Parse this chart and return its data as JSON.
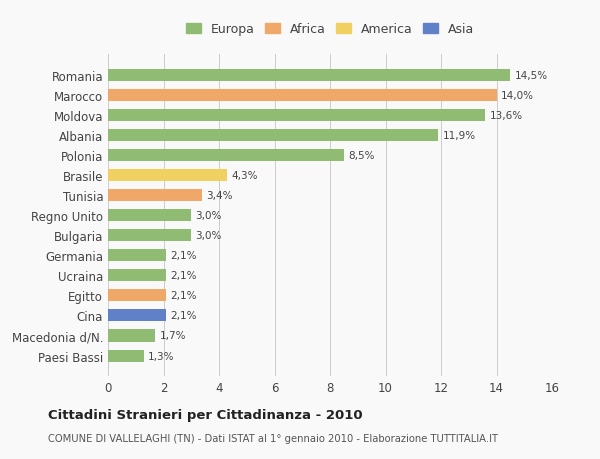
{
  "categories": [
    "Romania",
    "Marocco",
    "Moldova",
    "Albania",
    "Polonia",
    "Brasile",
    "Tunisia",
    "Regno Unito",
    "Bulgaria",
    "Germania",
    "Ucraina",
    "Egitto",
    "Cina",
    "Macedonia d/N.",
    "Paesi Bassi"
  ],
  "values": [
    14.5,
    14.0,
    13.6,
    11.9,
    8.5,
    4.3,
    3.4,
    3.0,
    3.0,
    2.1,
    2.1,
    2.1,
    2.1,
    1.7,
    1.3
  ],
  "labels": [
    "14,5%",
    "14,0%",
    "13,6%",
    "11,9%",
    "8,5%",
    "4,3%",
    "3,4%",
    "3,0%",
    "3,0%",
    "2,1%",
    "2,1%",
    "2,1%",
    "2,1%",
    "1,7%",
    "1,3%"
  ],
  "continents": [
    "Europa",
    "Africa",
    "Europa",
    "Europa",
    "Europa",
    "America",
    "Africa",
    "Europa",
    "Europa",
    "Europa",
    "Europa",
    "Africa",
    "Asia",
    "Europa",
    "Europa"
  ],
  "colors": {
    "Europa": "#8FBC72",
    "Africa": "#F0A868",
    "America": "#F0D060",
    "Asia": "#6080C8"
  },
  "legend_colors": {
    "Europa": "#8FBC72",
    "Africa": "#F0A868",
    "America": "#F0D060",
    "Asia": "#6080C8"
  },
  "xlim": [
    0,
    16
  ],
  "xticks": [
    0,
    2,
    4,
    6,
    8,
    10,
    12,
    14,
    16
  ],
  "title": "Cittadini Stranieri per Cittadinanza - 2010",
  "subtitle": "COMUNE DI VALLELAGHI (TN) - Dati ISTAT al 1° gennaio 2010 - Elaborazione TUTTITALIA.IT",
  "background_color": "#f9f9f9",
  "bar_height": 0.6,
  "grid_color": "#cccccc"
}
